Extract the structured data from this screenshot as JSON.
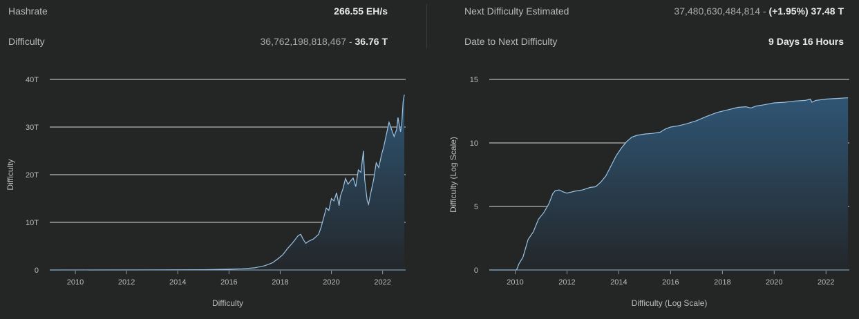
{
  "stats": {
    "hashrate_label": "Hashrate",
    "hashrate_value": "266.55 EH/s",
    "difficulty_label": "Difficulty",
    "difficulty_raw": "36,762,198,818,467 - ",
    "difficulty_short": "36.76 T",
    "next_label": "Next Difficulty Estimated",
    "next_raw": "37,480,630,484,814 - ",
    "next_short": "(+1.95%) 37.48 T",
    "date_label": "Date to Next Difficulty",
    "date_value": "9 Days 16 Hours"
  },
  "colors": {
    "background": "#242625",
    "line": "#9cc3e4",
    "fill_top": "#2f5574",
    "fill_bottom": "#23272a",
    "grid": "#d9d9d9"
  },
  "chart_data": [
    {
      "type": "area",
      "xlabel": "Difficulty",
      "ylabel": "Difficulty",
      "xlim": [
        2009.0,
        2022.9
      ],
      "ylim": [
        0,
        40
      ],
      "y_ticks": [
        "0",
        "10T",
        "20T",
        "30T",
        "40T"
      ],
      "y_tick_values": [
        0,
        10,
        20,
        30,
        40
      ],
      "x_ticks": [
        "2010",
        "2012",
        "2014",
        "2016",
        "2018",
        "2020",
        "2022"
      ],
      "x_tick_values": [
        2010,
        2012,
        2014,
        2016,
        2018,
        2020,
        2022
      ],
      "grid": true,
      "unit": "T",
      "series": [
        {
          "x": [
            2009.0,
            2013.0,
            2014.0,
            2015.0,
            2016.0,
            2016.5,
            2017.0,
            2017.4,
            2017.7,
            2017.9,
            2018.1,
            2018.3,
            2018.5,
            2018.7,
            2018.8,
            2018.9,
            2019.0,
            2019.1,
            2019.3,
            2019.5,
            2019.6,
            2019.7,
            2019.8,
            2019.9,
            2020.0,
            2020.1,
            2020.2,
            2020.3,
            2020.35,
            2020.45,
            2020.55,
            2020.65,
            2020.75,
            2020.85,
            2020.95,
            2021.05,
            2021.15,
            2021.25,
            2021.3,
            2021.4,
            2021.45,
            2021.55,
            2021.65,
            2021.75,
            2021.85,
            2021.95,
            2022.05,
            2022.15,
            2022.25,
            2022.35,
            2022.45,
            2022.55,
            2022.6,
            2022.65,
            2022.7,
            2022.75,
            2022.8,
            2022.85
          ],
          "y": [
            0.0,
            0.01,
            0.04,
            0.06,
            0.16,
            0.25,
            0.45,
            0.9,
            1.5,
            2.3,
            3.2,
            4.6,
            5.8,
            7.2,
            7.5,
            6.4,
            5.6,
            6.0,
            6.5,
            7.5,
            9.0,
            11.0,
            13.0,
            12.5,
            15.0,
            14.5,
            16.2,
            13.5,
            15.5,
            17.0,
            19.2,
            18.0,
            18.7,
            19.3,
            17.5,
            21.0,
            20.5,
            25.0,
            19.0,
            14.5,
            13.8,
            16.5,
            19.0,
            22.5,
            21.5,
            24.0,
            26.0,
            28.5,
            31.0,
            29.5,
            28.0,
            29.5,
            32.0,
            30.5,
            29.0,
            30.8,
            35.3,
            36.8
          ]
        }
      ]
    },
    {
      "type": "area",
      "xlabel": "Difficulty (Log Scale)",
      "ylabel": "Difficulty (Log Scale)",
      "xlim": [
        2009.0,
        2022.9
      ],
      "ylim": [
        0,
        15
      ],
      "y_ticks": [
        "0",
        "5",
        "10",
        "15"
      ],
      "y_tick_values": [
        0,
        5,
        10,
        15
      ],
      "x_ticks": [
        "2010",
        "2012",
        "2014",
        "2016",
        "2018",
        "2020",
        "2022"
      ],
      "x_tick_values": [
        2010,
        2012,
        2014,
        2016,
        2018,
        2020,
        2022
      ],
      "grid": true,
      "series": [
        {
          "x": [
            2009.0,
            2010.05,
            2010.15,
            2010.3,
            2010.5,
            2010.7,
            2010.9,
            2011.1,
            2011.3,
            2011.45,
            2011.55,
            2011.7,
            2011.85,
            2012.0,
            2012.3,
            2012.6,
            2012.9,
            2013.1,
            2013.3,
            2013.5,
            2013.7,
            2013.9,
            2014.1,
            2014.3,
            2014.5,
            2014.7,
            2015.0,
            2015.3,
            2015.6,
            2015.8,
            2016.0,
            2016.3,
            2016.6,
            2017.0,
            2017.4,
            2017.8,
            2018.2,
            2018.6,
            2018.9,
            2019.1,
            2019.3,
            2019.6,
            2020.0,
            2020.4,
            2020.8,
            2021.2,
            2021.4,
            2021.45,
            2021.6,
            2022.0,
            2022.4,
            2022.8,
            2022.85
          ],
          "y": [
            0.0,
            0.0,
            0.5,
            1.0,
            2.4,
            3.0,
            4.0,
            4.5,
            5.2,
            6.0,
            6.25,
            6.3,
            6.15,
            6.05,
            6.2,
            6.3,
            6.5,
            6.55,
            6.9,
            7.4,
            8.2,
            9.0,
            9.6,
            10.1,
            10.45,
            10.6,
            10.7,
            10.75,
            10.85,
            11.1,
            11.25,
            11.35,
            11.5,
            11.75,
            12.1,
            12.4,
            12.6,
            12.8,
            12.85,
            12.75,
            12.9,
            13.0,
            13.15,
            13.2,
            13.3,
            13.35,
            13.45,
            13.2,
            13.35,
            13.45,
            13.5,
            13.55,
            13.55
          ]
        }
      ]
    }
  ]
}
